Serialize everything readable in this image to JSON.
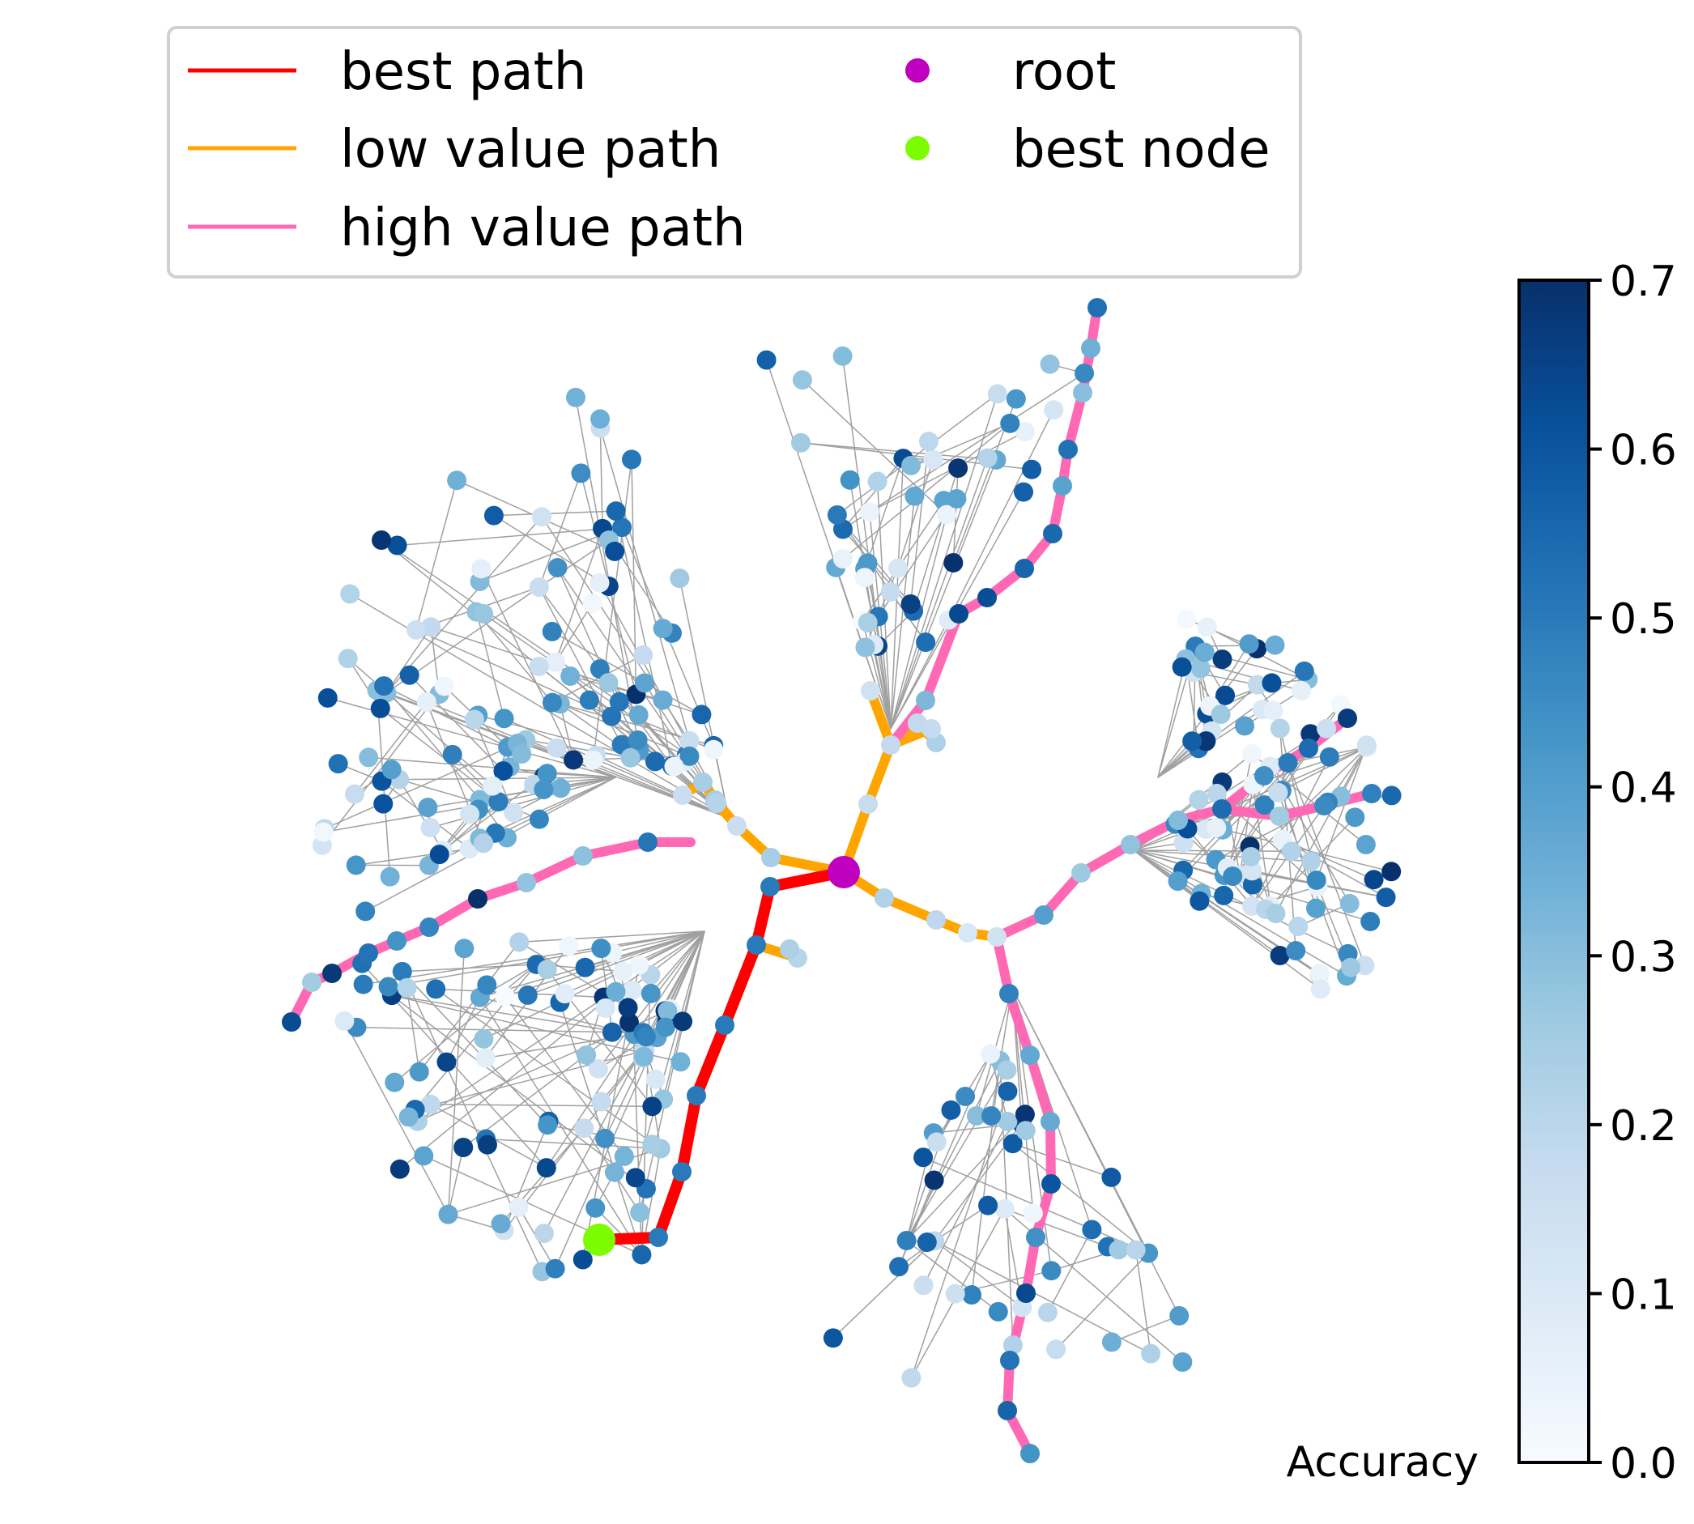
{
  "figure": {
    "type": "radial search tree",
    "legend": {
      "entries": [
        {
          "label": "best path",
          "kind": "line",
          "color": "#ff0000"
        },
        {
          "label": "low value path",
          "kind": "line",
          "color": "#ffa500"
        },
        {
          "label": "high value path",
          "kind": "line",
          "color": "#ff69b4"
        },
        {
          "label": "root",
          "kind": "marker",
          "color": "#bf00bf"
        },
        {
          "label": "best node",
          "kind": "marker",
          "color": "#7cfc00"
        }
      ]
    },
    "colorbar": {
      "label": "Accuracy",
      "colormap": "Blues",
      "range": [
        0.0,
        0.7
      ],
      "ticks": [
        "0.0",
        "0.1",
        "0.2",
        "0.3",
        "0.4",
        "0.5",
        "0.6",
        "0.7"
      ],
      "stops": [
        "#f7fbff",
        "#deebf7",
        "#c6dbef",
        "#9ecae1",
        "#6baed6",
        "#4292c6",
        "#2171b5",
        "#08519c",
        "#08306b"
      ]
    },
    "edge_color": "#a0a0a0"
  }
}
